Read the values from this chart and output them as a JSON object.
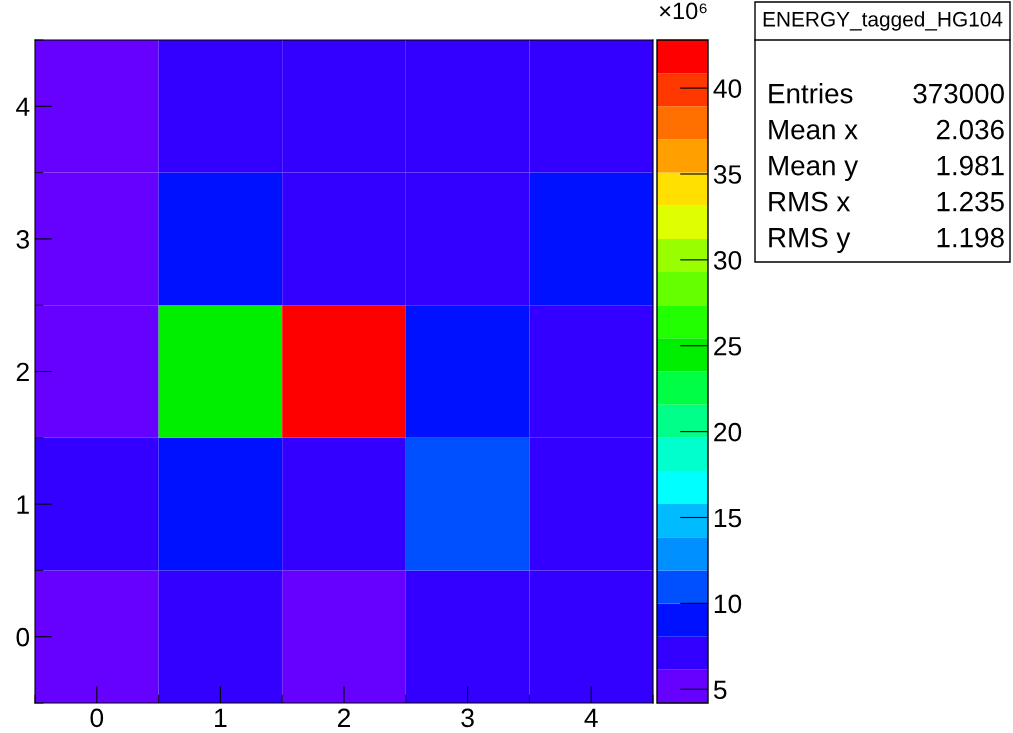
{
  "chart_data": {
    "type": "heatmap",
    "title": "ENERGY_tagged_HG104",
    "categories": [
      "0",
      "1",
      "2",
      "3",
      "4"
    ],
    "y_categories": [
      "4",
      "3",
      "2",
      "1",
      "0"
    ],
    "cells": [
      [
        5.2,
        7.1,
        7.1,
        7.1,
        7.1
      ],
      [
        5.2,
        9.1,
        7.1,
        7.1,
        9.1
      ],
      [
        5.2,
        25,
        42,
        9.1,
        7.1
      ],
      [
        7.1,
        9.1,
        7.1,
        11,
        7.1
      ],
      [
        5.2,
        7.1,
        5.2,
        7.1,
        7.1
      ]
    ],
    "clim": [
      4.2,
      42.8
    ],
    "cticks": [
      5,
      10,
      15,
      20,
      25,
      30,
      35,
      40
    ],
    "clabel": "×10⁶",
    "annotations": [
      "Entries",
      "373000",
      "Mean x",
      "2.036",
      "Mean y",
      "1.981",
      "RMS x",
      "1.235",
      "RMS y",
      "1.198"
    ],
    "grid": false
  }
}
